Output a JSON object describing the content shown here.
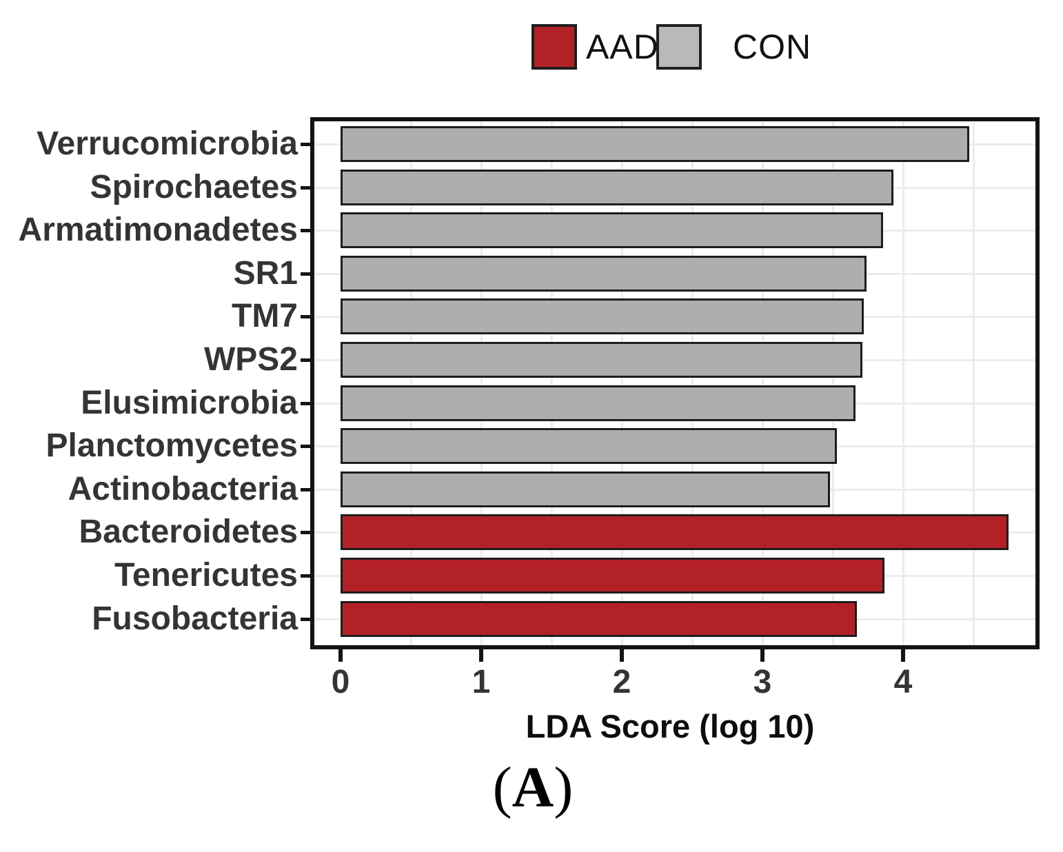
{
  "legend": {
    "items": [
      {
        "label": "AAD",
        "color": "#B22126",
        "key_name": "aad-legend-key"
      },
      {
        "label": "CON",
        "color": "#B9B9B9",
        "key_name": "con-legend-key"
      }
    ]
  },
  "caption": {
    "open": "(",
    "letter": "A",
    "close": ")"
  },
  "chart_data": {
    "type": "bar",
    "orientation": "horizontal",
    "title": "",
    "xlabel": "LDA Score (log 10)",
    "ylabel": "",
    "xlim": [
      0,
      4.95
    ],
    "xticks": [
      "0",
      "1",
      "2",
      "3",
      "4"
    ],
    "grid": "light gray, vertical every 0.5 units, horizontal at each category center",
    "legend_position": "top-center",
    "categories": [
      "Verrucomicrobia",
      "Spirochaetes",
      "Armatimonadetes",
      "SR1",
      "TM7",
      "WPS2",
      "Elusimicrobia",
      "Planctomycetes",
      "Actinobacteria",
      "Bacteroidetes",
      "Tenericutes",
      "Fusobacteria"
    ],
    "series": [
      {
        "name": "LDA score",
        "values": [
          4.47,
          3.93,
          3.86,
          3.74,
          3.72,
          3.71,
          3.66,
          3.53,
          3.48,
          4.75,
          3.87,
          3.67
        ]
      }
    ],
    "groups": [
      "CON",
      "CON",
      "CON",
      "CON",
      "CON",
      "CON",
      "CON",
      "CON",
      "CON",
      "AAD",
      "AAD",
      "AAD"
    ],
    "group_colors": {
      "AAD": "#B22126",
      "CON": "#AEAEAE"
    },
    "bar_outline_color": "#1d1d1d"
  }
}
